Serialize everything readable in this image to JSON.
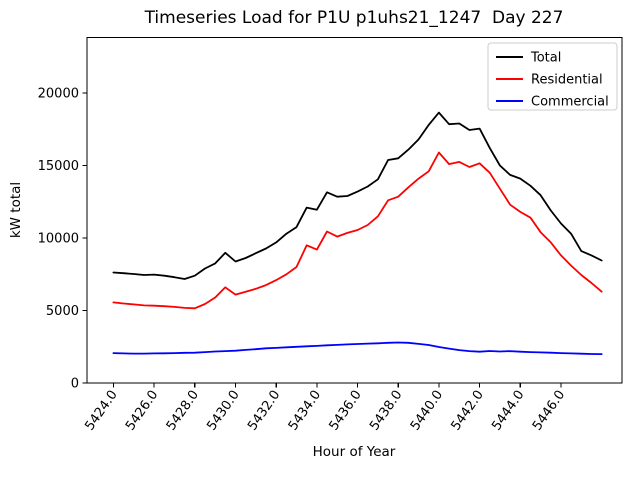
{
  "figure": {
    "title": "Timeseries Load for P1U p1uhs21_1247  Day 227",
    "xlabel": "Hour of Year",
    "ylabel": "kW total"
  },
  "legend": {
    "position": "upper right",
    "entries": [
      {
        "label": "Total",
        "color": "#000000"
      },
      {
        "label": "Residential",
        "color": "#ff0000"
      },
      {
        "label": "Commercial",
        "color": "#0000ff"
      }
    ]
  },
  "chart_data": {
    "type": "line",
    "title": "Timeseries Load for P1U p1uhs21_1247  Day 227",
    "xlabel": "Hour of Year",
    "ylabel": "kW total",
    "grid": false,
    "legend_position": "upper right",
    "xlim": [
      5422.7,
      5449.0
    ],
    "ylim": [
      0,
      23830
    ],
    "xticks": [
      5424,
      5426,
      5428,
      5430,
      5432,
      5434,
      5436,
      5438,
      5440,
      5442,
      5444,
      5446
    ],
    "xtick_labels": [
      "5424.0",
      "5426.0",
      "5428.0",
      "5430.0",
      "5432.0",
      "5434.0",
      "5436.0",
      "5438.0",
      "5440.0",
      "5442.0",
      "5444.0",
      "5446.0"
    ],
    "yticks": [
      0,
      5000,
      10000,
      15000,
      20000
    ],
    "ytick_labels": [
      "0",
      "5000",
      "10000",
      "15000",
      "20000"
    ],
    "x": [
      5424.0,
      5424.5,
      5425.0,
      5425.5,
      5426.0,
      5426.5,
      5427.0,
      5427.5,
      5428.0,
      5428.5,
      5429.0,
      5429.5,
      5430.0,
      5430.5,
      5431.0,
      5431.5,
      5432.0,
      5432.5,
      5433.0,
      5433.5,
      5434.0,
      5434.5,
      5435.0,
      5435.5,
      5436.0,
      5436.5,
      5437.0,
      5437.5,
      5438.0,
      5438.5,
      5439.0,
      5439.5,
      5440.0,
      5440.5,
      5441.0,
      5441.5,
      5442.0,
      5442.5,
      5443.0,
      5443.5,
      5444.0,
      5444.5,
      5445.0,
      5445.5,
      5446.0,
      5446.5,
      5447.0,
      5447.5,
      5448.0
    ],
    "series": [
      {
        "name": "Total",
        "color": "#000000",
        "values": [
          7620,
          7570,
          7520,
          7450,
          7480,
          7400,
          7300,
          7170,
          7400,
          7900,
          8250,
          8980,
          8380,
          8620,
          8950,
          9280,
          9700,
          10300,
          10750,
          12100,
          11950,
          13150,
          12850,
          12900,
          13200,
          13550,
          14050,
          15380,
          15500,
          16100,
          16800,
          17800,
          18650,
          17850,
          17900,
          17450,
          17550,
          16200,
          15000,
          14350,
          14100,
          13600,
          12950,
          11900,
          11000,
          10300,
          9100,
          8800,
          8450
        ]
      },
      {
        "name": "Residential",
        "color": "#ff0000",
        "values": [
          5560,
          5480,
          5420,
          5350,
          5330,
          5300,
          5250,
          5180,
          5150,
          5450,
          5900,
          6600,
          6100,
          6300,
          6500,
          6750,
          7100,
          7500,
          8000,
          9500,
          9200,
          10450,
          10100,
          10350,
          10550,
          10900,
          11500,
          12600,
          12850,
          13500,
          14100,
          14600,
          15900,
          15100,
          15250,
          14900,
          15150,
          14500,
          13400,
          12300,
          11800,
          11400,
          10400,
          9700,
          8800,
          8100,
          7450,
          6900,
          6300
        ]
      },
      {
        "name": "Commercial",
        "color": "#0000ff",
        "values": [
          2060,
          2040,
          2030,
          2030,
          2040,
          2050,
          2060,
          2080,
          2090,
          2130,
          2170,
          2200,
          2230,
          2280,
          2330,
          2390,
          2420,
          2460,
          2500,
          2530,
          2560,
          2600,
          2630,
          2660,
          2690,
          2720,
          2740,
          2770,
          2790,
          2770,
          2700,
          2620,
          2480,
          2370,
          2270,
          2200,
          2160,
          2210,
          2170,
          2200,
          2160,
          2130,
          2110,
          2090,
          2060,
          2040,
          2020,
          2000,
          1990
        ]
      }
    ]
  }
}
